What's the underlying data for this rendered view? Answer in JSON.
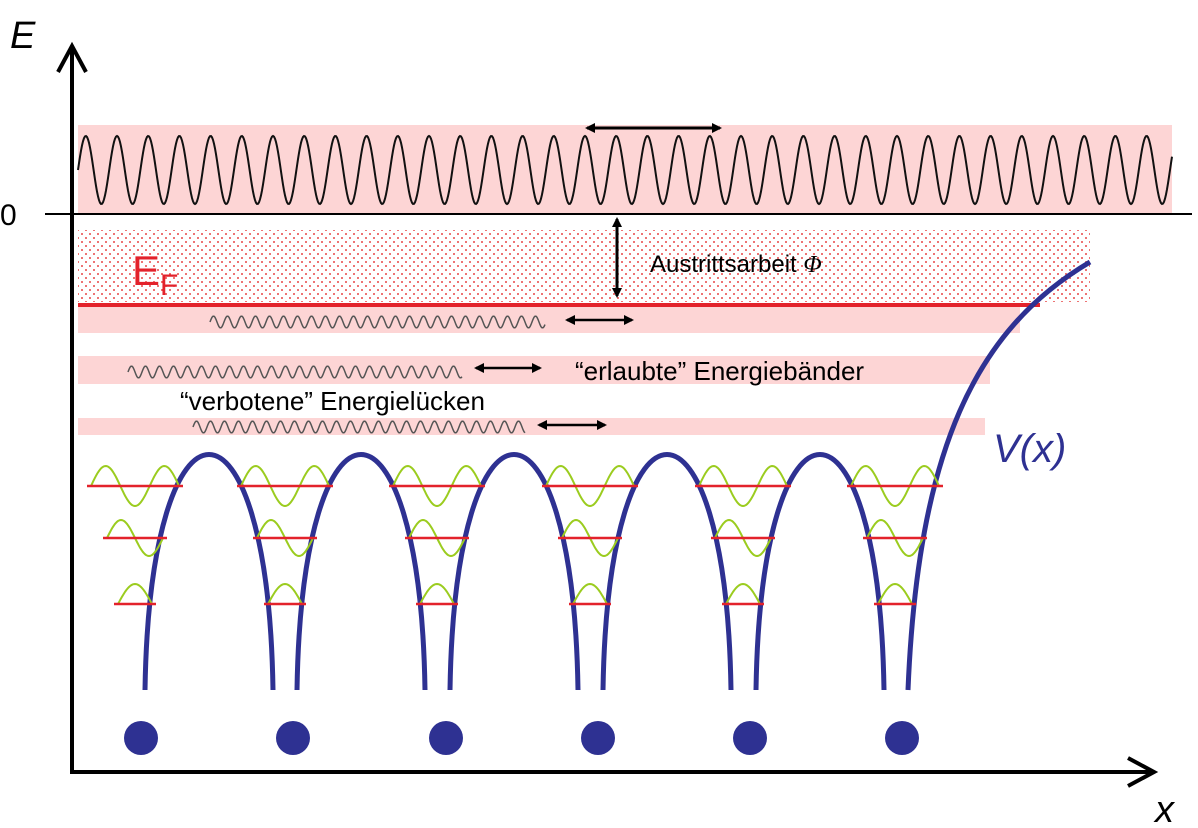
{
  "axes": {
    "y_label": "E",
    "x_label": "x",
    "zero_label": "0"
  },
  "fermi_level": {
    "label": "E",
    "subscript": "F"
  },
  "annotations": {
    "work_function": "Austrittsarbeit",
    "work_function_symbol": "Φ",
    "allowed_bands": "“erlaubte” Energiebänder",
    "forbidden_gaps": "“verbotene” Energielücken"
  },
  "potential_label": "V(x)"
}
